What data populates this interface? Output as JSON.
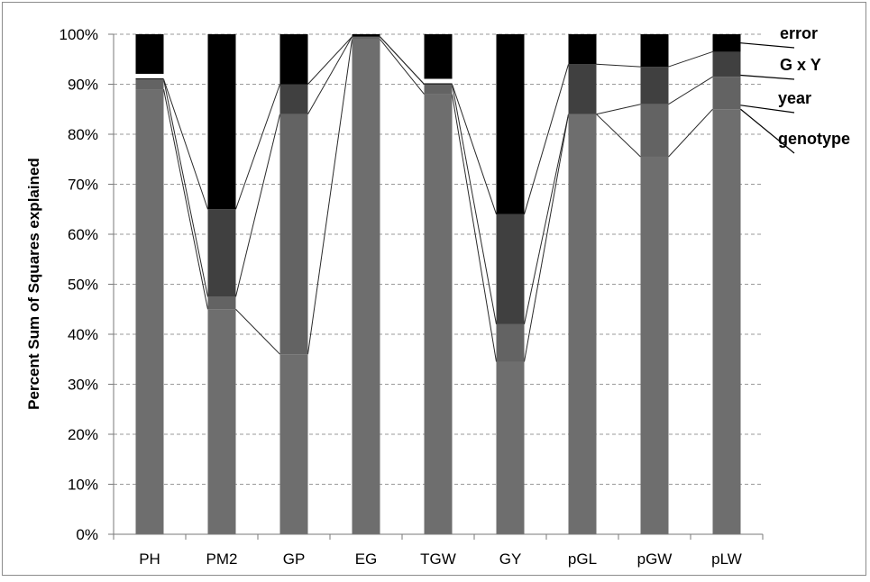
{
  "chart_data": {
    "type": "bar",
    "stacked": true,
    "title": "",
    "xlabel": "",
    "ylabel": "Percent Sum of Squares explained",
    "ylim": [
      0,
      100
    ],
    "yticks": [
      "0%",
      "10%",
      "20%",
      "30%",
      "40%",
      "50%",
      "60%",
      "70%",
      "80%",
      "90%",
      "100%"
    ],
    "grid": true,
    "legend_placement": "right",
    "categories": [
      "PH",
      "PM2",
      "GP",
      "EG",
      "TGW",
      "GY",
      "pGL",
      "pGW",
      "pLW"
    ],
    "series": [
      {
        "name": "genotype",
        "color": "#6e6e6e",
        "values": [
          89,
          45,
          36,
          99,
          88,
          34.5,
          84,
          75.5,
          85
        ]
      },
      {
        "name": "year",
        "color": "#636363",
        "values": [
          2,
          2.5,
          48,
          0.5,
          2,
          7.5,
          0,
          10.5,
          6.5
        ]
      },
      {
        "name": "G x Y",
        "color": "#404040",
        "values": [
          0,
          17.5,
          6,
          0,
          0,
          22,
          10,
          7.5,
          5
        ]
      },
      {
        "name": "error",
        "color": "#000000",
        "values": [
          9,
          35,
          10,
          0.5,
          10,
          36,
          6,
          6.5,
          3.5
        ]
      }
    ],
    "white_separator_bars": [
      "PH",
      "TGW"
    ]
  }
}
